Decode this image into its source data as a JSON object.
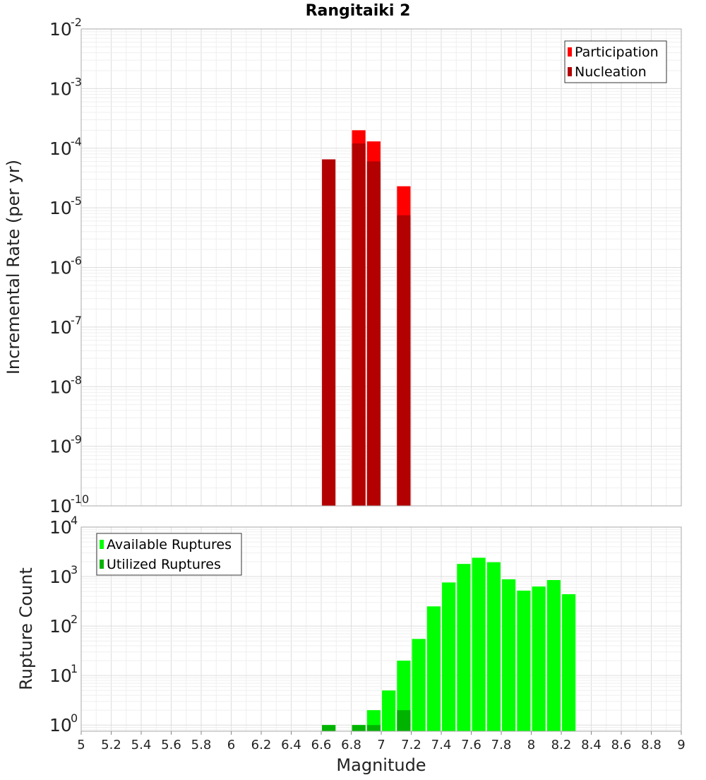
{
  "chart_data": [
    {
      "type": "bar",
      "title": "Rangitaiki 2",
      "xlabel": "",
      "ylabel": "Incremental Rate (per yr)",
      "yscale": "log",
      "xlim": [
        5,
        9
      ],
      "ylim": [
        1e-10,
        0.01
      ],
      "grid": true,
      "legend": "top-right",
      "y_ticks": [
        {
          "base": "10",
          "exp": "-2",
          "value": 0.01
        },
        {
          "base": "10",
          "exp": "-3",
          "value": 0.001
        },
        {
          "base": "10",
          "exp": "-4",
          "value": 0.0001
        },
        {
          "base": "10",
          "exp": "-5",
          "value": 1e-05
        },
        {
          "base": "10",
          "exp": "-6",
          "value": 1e-06
        },
        {
          "base": "10",
          "exp": "-7",
          "value": 1e-07
        },
        {
          "base": "10",
          "exp": "-8",
          "value": 1e-08
        },
        {
          "base": "10",
          "exp": "-9",
          "value": 1e-09
        },
        {
          "base": "10",
          "exp": "-10",
          "value": 1e-10
        }
      ],
      "series": [
        {
          "name": "Participation",
          "color": "#ff0000",
          "points": [
            {
              "x": 6.85,
              "y": 0.0002
            },
            {
              "x": 6.95,
              "y": 0.00013
            },
            {
              "x": 7.15,
              "y": 2.3e-05
            }
          ]
        },
        {
          "name": "Nucleation",
          "color": "#b30000",
          "points": [
            {
              "x": 6.65,
              "y": 6.5e-05
            },
            {
              "x": 6.85,
              "y": 0.00012
            },
            {
              "x": 6.95,
              "y": 6e-05
            },
            {
              "x": 7.15,
              "y": 7.5e-06
            }
          ]
        }
      ]
    },
    {
      "type": "bar",
      "title": "",
      "xlabel": "Magnitude",
      "ylabel": "Rupture Count",
      "yscale": "log",
      "xlim": [
        5,
        9
      ],
      "ylim": [
        0.75,
        10000.0
      ],
      "grid": true,
      "legend": "top-left",
      "x_ticks": [
        "5",
        "5.2",
        "5.4",
        "5.6",
        "5.8",
        "6",
        "6.2",
        "6.4",
        "6.6",
        "6.8",
        "7",
        "7.2",
        "7.4",
        "7.6",
        "7.8",
        "8",
        "8.2",
        "8.4",
        "8.6",
        "8.8",
        "9"
      ],
      "y_ticks": [
        {
          "base": "10",
          "exp": "4",
          "value": 10000
        },
        {
          "base": "10",
          "exp": "3",
          "value": 1000
        },
        {
          "base": "10",
          "exp": "2",
          "value": 100
        },
        {
          "base": "10",
          "exp": "1",
          "value": 10
        },
        {
          "base": "10",
          "exp": "0",
          "value": 1
        }
      ],
      "series": [
        {
          "name": "Available Ruptures",
          "color": "#00ff00",
          "points": [
            {
              "x": 6.65,
              "y": 1
            },
            {
              "x": 6.85,
              "y": 1
            },
            {
              "x": 6.95,
              "y": 2
            },
            {
              "x": 7.05,
              "y": 5
            },
            {
              "x": 7.15,
              "y": 20
            },
            {
              "x": 7.25,
              "y": 55
            },
            {
              "x": 7.35,
              "y": 250
            },
            {
              "x": 7.45,
              "y": 760
            },
            {
              "x": 7.55,
              "y": 1800
            },
            {
              "x": 7.65,
              "y": 2400
            },
            {
              "x": 7.75,
              "y": 1950
            },
            {
              "x": 7.85,
              "y": 880
            },
            {
              "x": 7.95,
              "y": 520
            },
            {
              "x": 8.05,
              "y": 630
            },
            {
              "x": 8.15,
              "y": 850
            },
            {
              "x": 8.25,
              "y": 440
            }
          ]
        },
        {
          "name": "Utilized Ruptures",
          "color": "#00b300",
          "points": [
            {
              "x": 6.65,
              "y": 1
            },
            {
              "x": 6.85,
              "y": 1
            },
            {
              "x": 6.95,
              "y": 1
            },
            {
              "x": 7.15,
              "y": 2
            }
          ]
        }
      ]
    }
  ]
}
